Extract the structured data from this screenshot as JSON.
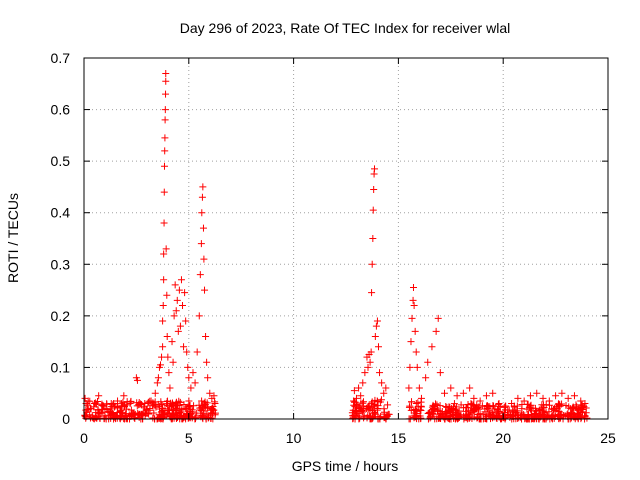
{
  "chart_data": {
    "type": "scatter",
    "title": "Day 296 of 2023, Rate Of TEC Index for receiver wlal",
    "xlabel": "GPS time / hours",
    "ylabel": "ROTI / TECUs",
    "xlim": [
      0,
      25
    ],
    "ylim": [
      0,
      0.7
    ],
    "xticks": [
      "0",
      "5",
      "10",
      "15",
      "20",
      "25"
    ],
    "yticks": [
      "0",
      "0.1",
      "0.2",
      "0.3",
      "0.4",
      "0.5",
      "0.6",
      "0.7"
    ],
    "grid": true,
    "marker": "+",
    "color": "#ff0000",
    "series": [
      {
        "name": "ROTI",
        "points": [
          [
            0.05,
            0.04
          ],
          [
            0.1,
            0.03
          ],
          [
            0.2,
            0.035
          ],
          [
            0.3,
            0.02
          ],
          [
            0.5,
            0.03
          ],
          [
            0.7,
            0.045
          ],
          [
            1.0,
            0.02
          ],
          [
            1.3,
            0.03
          ],
          [
            1.6,
            0.035
          ],
          [
            1.9,
            0.045
          ],
          [
            2.2,
            0.03
          ],
          [
            2.5,
            0.08
          ],
          [
            2.55,
            0.075
          ],
          [
            2.9,
            0.03
          ],
          [
            3.2,
            0.035
          ],
          [
            3.4,
            0.05
          ],
          [
            3.5,
            0.07
          ],
          [
            3.55,
            0.08
          ],
          [
            3.6,
            0.1
          ],
          [
            3.65,
            0.105
          ],
          [
            3.7,
            0.12
          ],
          [
            3.75,
            0.14
          ],
          [
            3.75,
            0.19
          ],
          [
            3.78,
            0.22
          ],
          [
            3.8,
            0.27
          ],
          [
            3.8,
            0.32
          ],
          [
            3.82,
            0.38
          ],
          [
            3.83,
            0.44
          ],
          [
            3.84,
            0.49
          ],
          [
            3.85,
            0.52
          ],
          [
            3.86,
            0.545
          ],
          [
            3.87,
            0.58
          ],
          [
            3.88,
            0.6
          ],
          [
            3.89,
            0.63
          ],
          [
            3.9,
            0.655
          ],
          [
            3.9,
            0.67
          ],
          [
            3.92,
            0.33
          ],
          [
            3.95,
            0.24
          ],
          [
            3.97,
            0.16
          ],
          [
            4.0,
            0.12
          ],
          [
            4.05,
            0.09
          ],
          [
            4.1,
            0.06
          ],
          [
            4.2,
            0.15
          ],
          [
            4.25,
            0.11
          ],
          [
            4.3,
            0.2
          ],
          [
            4.35,
            0.26
          ],
          [
            4.4,
            0.21
          ],
          [
            4.45,
            0.23
          ],
          [
            4.5,
            0.17
          ],
          [
            4.55,
            0.25
          ],
          [
            4.6,
            0.18
          ],
          [
            4.65,
            0.27
          ],
          [
            4.7,
            0.22
          ],
          [
            4.75,
            0.14
          ],
          [
            4.8,
            0.245
          ],
          [
            4.85,
            0.19
          ],
          [
            4.9,
            0.13
          ],
          [
            4.95,
            0.1
          ],
          [
            5.0,
            0.08
          ],
          [
            5.1,
            0.06
          ],
          [
            5.2,
            0.09
          ],
          [
            5.3,
            0.07
          ],
          [
            5.4,
            0.13
          ],
          [
            5.5,
            0.2
          ],
          [
            5.55,
            0.28
          ],
          [
            5.6,
            0.34
          ],
          [
            5.62,
            0.4
          ],
          [
            5.65,
            0.43
          ],
          [
            5.67,
            0.45
          ],
          [
            5.7,
            0.37
          ],
          [
            5.72,
            0.31
          ],
          [
            5.75,
            0.25
          ],
          [
            5.8,
            0.16
          ],
          [
            5.85,
            0.11
          ],
          [
            5.9,
            0.08
          ],
          [
            6.0,
            0.05
          ],
          [
            6.1,
            0.04
          ],
          [
            6.2,
            0.045
          ],
          [
            6.25,
            0.03
          ],
          [
            12.9,
            0.055
          ],
          [
            13.0,
            0.04
          ],
          [
            13.1,
            0.06
          ],
          [
            13.2,
            0.045
          ],
          [
            13.3,
            0.07
          ],
          [
            13.4,
            0.09
          ],
          [
            13.5,
            0.12
          ],
          [
            13.55,
            0.1
          ],
          [
            13.6,
            0.125
          ],
          [
            13.65,
            0.11
          ],
          [
            13.7,
            0.13
          ],
          [
            13.72,
            0.245
          ],
          [
            13.75,
            0.3
          ],
          [
            13.78,
            0.35
          ],
          [
            13.8,
            0.405
          ],
          [
            13.82,
            0.445
          ],
          [
            13.84,
            0.475
          ],
          [
            13.86,
            0.485
          ],
          [
            13.9,
            0.16
          ],
          [
            13.95,
            0.18
          ],
          [
            14.0,
            0.19
          ],
          [
            14.05,
            0.14
          ],
          [
            14.1,
            0.09
          ],
          [
            14.2,
            0.07
          ],
          [
            14.3,
            0.05
          ],
          [
            14.4,
            0.06
          ],
          [
            15.5,
            0.06
          ],
          [
            15.55,
            0.1
          ],
          [
            15.6,
            0.15
          ],
          [
            15.65,
            0.195
          ],
          [
            15.7,
            0.23
          ],
          [
            15.72,
            0.255
          ],
          [
            15.75,
            0.22
          ],
          [
            15.8,
            0.17
          ],
          [
            15.85,
            0.13
          ],
          [
            15.9,
            0.1
          ],
          [
            16.0,
            0.06
          ],
          [
            16.1,
            0.04
          ],
          [
            16.3,
            0.08
          ],
          [
            16.4,
            0.11
          ],
          [
            16.6,
            0.14
          ],
          [
            16.8,
            0.17
          ],
          [
            16.9,
            0.195
          ],
          [
            17.0,
            0.09
          ],
          [
            17.2,
            0.05
          ],
          [
            17.5,
            0.06
          ],
          [
            17.8,
            0.045
          ],
          [
            18.1,
            0.05
          ],
          [
            18.4,
            0.06
          ],
          [
            18.6,
            0.04
          ],
          [
            18.9,
            0.035
          ],
          [
            19.2,
            0.045
          ],
          [
            19.5,
            0.05
          ],
          [
            19.8,
            0.03
          ],
          [
            20.1,
            0.025
          ],
          [
            20.4,
            0.03
          ],
          [
            20.7,
            0.04
          ],
          [
            21.0,
            0.035
          ],
          [
            21.3,
            0.045
          ],
          [
            21.6,
            0.05
          ],
          [
            21.9,
            0.04
          ],
          [
            22.2,
            0.035
          ],
          [
            22.5,
            0.045
          ],
          [
            22.8,
            0.05
          ],
          [
            23.1,
            0.04
          ],
          [
            23.4,
            0.045
          ],
          [
            23.7,
            0.035
          ],
          [
            23.9,
            0.03
          ]
        ],
        "baseline_segments": [
          {
            "x": [
              0.0,
              6.3
            ],
            "max_level": 0.035
          },
          {
            "x": [
              12.8,
              14.6
            ],
            "max_level": 0.04
          },
          {
            "x": [
              15.5,
              16.1
            ],
            "max_level": 0.035
          },
          {
            "x": [
              16.4,
              24.0
            ],
            "max_level": 0.03
          }
        ]
      }
    ]
  }
}
